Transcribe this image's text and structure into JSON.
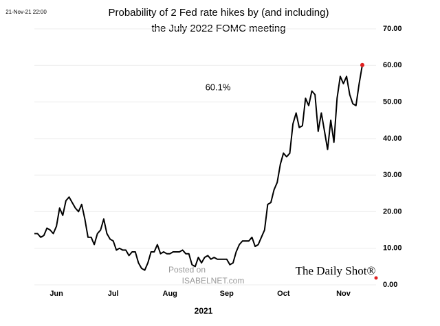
{
  "chart_data": {
    "type": "line",
    "timestamp": "21-Nov-21 22:00",
    "title_lines": [
      "Probability of 2 Fed rate hikes by (and including)",
      "the July 2022 FOMC meeting"
    ],
    "annotation": "60.1%",
    "xlabel": "2021",
    "source_logo": "The Daily Shot®",
    "watermark": [
      "Posted on",
      "ISABELNET.com"
    ],
    "categories": [
      null,
      null,
      null,
      null,
      null,
      null,
      null,
      "Jun",
      null,
      null,
      null,
      null,
      null,
      null,
      null,
      null,
      null,
      null,
      null,
      null,
      null,
      null,
      null,
      null,
      null,
      "Jul",
      null,
      null,
      null,
      null,
      null,
      null,
      null,
      null,
      null,
      null,
      null,
      null,
      null,
      null,
      null,
      null,
      null,
      "Aug",
      null,
      null,
      null,
      null,
      null,
      null,
      null,
      null,
      null,
      null,
      null,
      null,
      null,
      null,
      null,
      null,
      null,
      "Sep",
      null,
      null,
      null,
      null,
      null,
      null,
      null,
      null,
      null,
      null,
      null,
      null,
      null,
      null,
      null,
      null,
      null,
      "Oct",
      null,
      null,
      null,
      null,
      null,
      null,
      null,
      null,
      null,
      null,
      null,
      null,
      null,
      null,
      null,
      null,
      null,
      null,
      "Nov",
      null,
      null,
      null,
      null,
      null,
      null
    ],
    "series": [
      {
        "color": "#000000",
        "marker_color": "#e02020",
        "values": [
          14,
          14,
          13,
          13.5,
          15.5,
          15,
          14,
          16,
          21,
          19,
          23,
          24,
          22.5,
          21,
          20,
          22,
          18,
          13,
          13,
          11,
          14,
          15,
          18,
          14,
          12.5,
          12,
          9.5,
          10,
          9.5,
          9.5,
          8,
          9,
          9,
          6,
          4.5,
          4,
          6,
          9,
          9,
          11,
          8.5,
          9,
          8.5,
          8.5,
          9,
          9,
          9,
          9.5,
          8.5,
          8.5,
          5.5,
          5,
          7.5,
          6,
          7.5,
          8,
          7,
          7.5,
          7,
          7,
          7,
          7,
          5.5,
          6,
          9,
          11,
          12,
          12,
          12,
          13,
          10.5,
          11,
          13,
          15,
          22,
          22.5,
          26,
          28,
          33,
          36,
          35,
          36,
          44,
          47,
          43,
          43.5,
          51,
          49,
          53,
          52,
          42,
          47,
          42,
          37,
          45,
          39,
          51,
          57,
          55,
          57,
          52,
          49.5,
          49,
          55,
          60.1
        ]
      }
    ],
    "ylim": [
      0,
      70
    ],
    "yticks": [
      {
        "value": 0,
        "label": "0.00"
      },
      {
        "value": 10,
        "label": "10.00"
      },
      {
        "value": 20,
        "label": "20.00"
      },
      {
        "value": 30,
        "label": "30.00"
      },
      {
        "value": 40,
        "label": "40.00"
      },
      {
        "value": 50,
        "label": "50.00"
      },
      {
        "value": 60,
        "label": "60.00"
      },
      {
        "value": 70,
        "label": "70.00"
      }
    ],
    "y_axis_side": "right",
    "grid": true
  }
}
